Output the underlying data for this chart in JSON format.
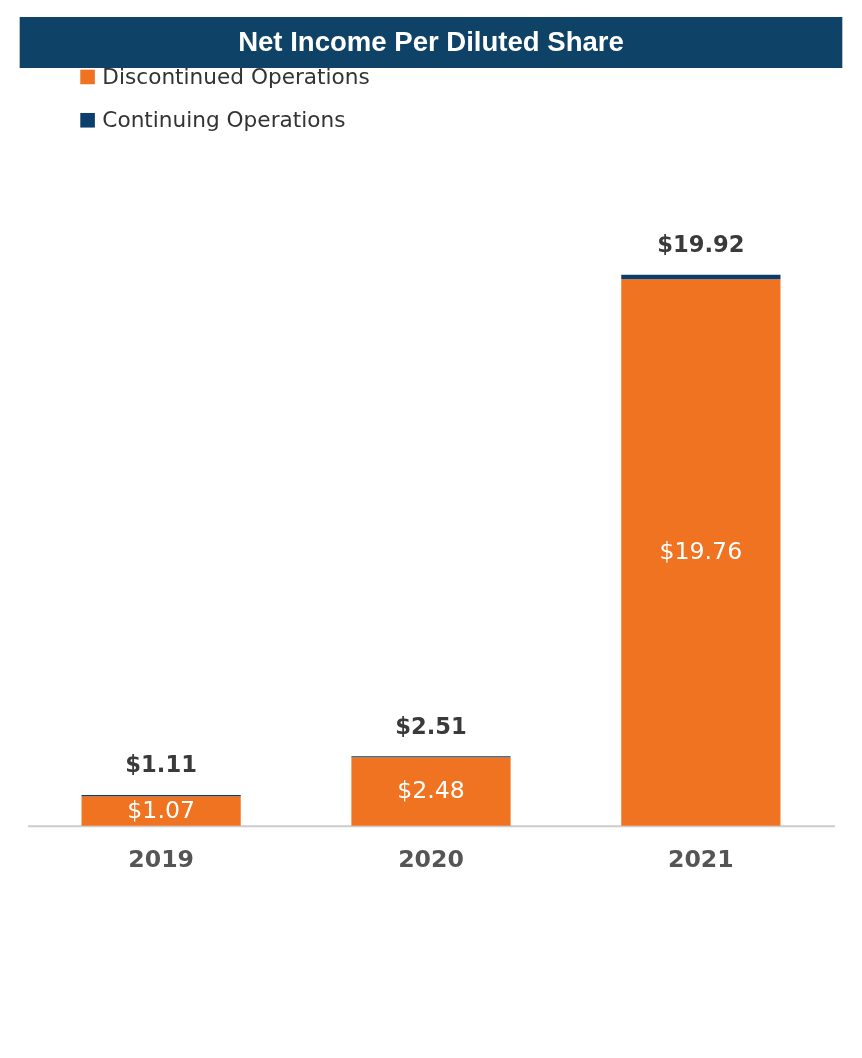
{
  "chart_data": {
    "type": "bar",
    "title": "Net Income Per Diluted Share",
    "categories": [
      "2019",
      "2020",
      "2021"
    ],
    "stacked": true,
    "series": [
      {
        "name": "Discontinued Operations",
        "color": "#f07322",
        "values": [
          1.07,
          2.48,
          19.76
        ],
        "value_labels": [
          "$1.07",
          "$2.48",
          "$19.76"
        ]
      },
      {
        "name": "Continuing Operations",
        "color": "#0d3d6b",
        "values": [
          0.04,
          0.03,
          0.16
        ]
      }
    ],
    "totals": [
      "$1.11",
      "$2.51",
      "$19.92"
    ],
    "tick_labels": "x",
    "legend": "top left",
    "grid": false
  }
}
